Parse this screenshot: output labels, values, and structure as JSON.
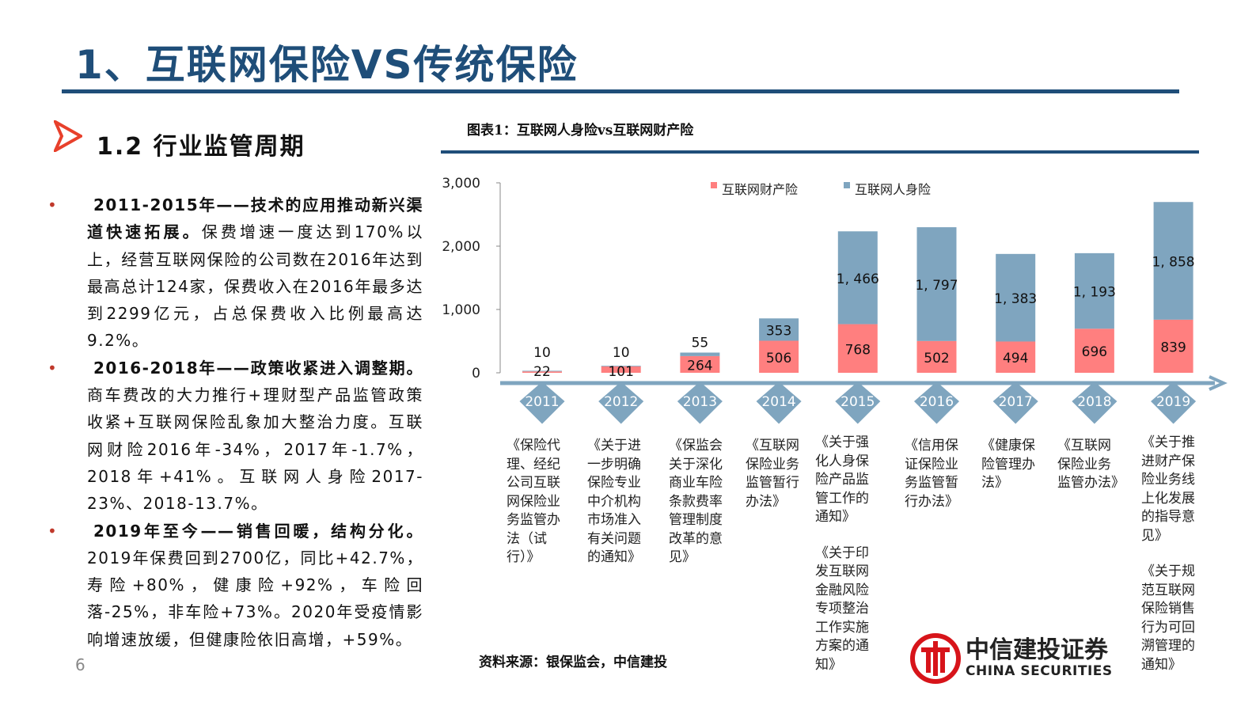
{
  "header": {
    "title": "1、互联网保险VS传统保险",
    "subtitle": "1.2 行业监管周期"
  },
  "bullets": [
    {
      "bold": "2011-2015年——技术的应用推动新兴渠道快速拓展。",
      "text": "保费增速一度达到170%以上，经营互联网保险的公司数在2016年达到最高总计124家，保费收入在2016年最多达到2299亿元，占总保费收入比例最高达9.2%。"
    },
    {
      "bold": "2016-2018年——政策收紧进入调整期。",
      "text": "商车费改的大力推行+理财型产品监管政策收紧+互联网保险乱象加大整治力度。互联网财险2016年-34%，2017年-1.7%， 2018年+41%。互联网人身险2017-23%、2018-13.7%。"
    },
    {
      "bold": "2019年至今——销售回暖，结构分化。",
      "text": "2019年保费回到2700亿，同比+42.7%，寿险+80%，健康险+92%，车险回落-25%，非车险+73%。2020年受疫情影响增速放缓，但健康险依旧高增，+59%。"
    }
  ],
  "page_number": "6",
  "chart_title": "图表1：互联网人身险vs互联网财产险",
  "chart_data": {
    "type": "bar",
    "stacked": true,
    "categories": [
      "2011",
      "2012",
      "2013",
      "2014",
      "2015",
      "2016",
      "2017",
      "2018",
      "2019"
    ],
    "series": [
      {
        "name": "互联网财产险",
        "color": "#ff7f7f",
        "values": [
          22,
          101,
          264,
          506,
          768,
          502,
          494,
          696,
          839
        ]
      },
      {
        "name": "互联网人身险",
        "color": "#7fa5bf",
        "values": [
          10,
          10,
          55,
          353,
          1466,
          1797,
          1383,
          1193,
          1858
        ]
      }
    ],
    "yticks": [
      "0",
      "1,000",
      "2,000",
      "3,000"
    ],
    "ylim": [
      0,
      3000
    ],
    "data_labels": {
      "互联网财产险": [
        "22",
        "101",
        "264",
        "506",
        "768",
        "502",
        "494",
        "696",
        "839"
      ],
      "互联网人身险": [
        "10",
        "10",
        "55",
        "353",
        "1, 466",
        "1, 797",
        "1, 383",
        "1, 193",
        "1, 858"
      ]
    },
    "legend": "top-center",
    "grid": false
  },
  "documents": [
    [
      "《保险代理、经纪公司互联网保险业务监管办法（试行）》"
    ],
    [
      "《关于进一步明确保险专业中介机构市场准入有关问题的通知》"
    ],
    [
      "《保监会关于深化商业车险条款费率管理制度改革的意见》"
    ],
    [
      "《互联网保险业务监管暂行办法》"
    ],
    [
      "《关于强化人身保险产品监管工作的通知》",
      "《关于印发互联网金融风险专项整治工作实施方案的通知》"
    ],
    [
      "《信用保证保险业务监管暂行办法》"
    ],
    [
      "《健康保险管理办法》"
    ],
    [
      "《互联网保险业务监管办法》"
    ],
    [
      "《关于推进财产保险业务线上化发展的指导意见》",
      "《关于规范互联网保险销售行为可回溯管理的通知》"
    ]
  ],
  "source": "资料来源：银保监会，中信建投",
  "logo": {
    "name": "中信建投证券",
    "en": "CHINA SECURITIES"
  }
}
